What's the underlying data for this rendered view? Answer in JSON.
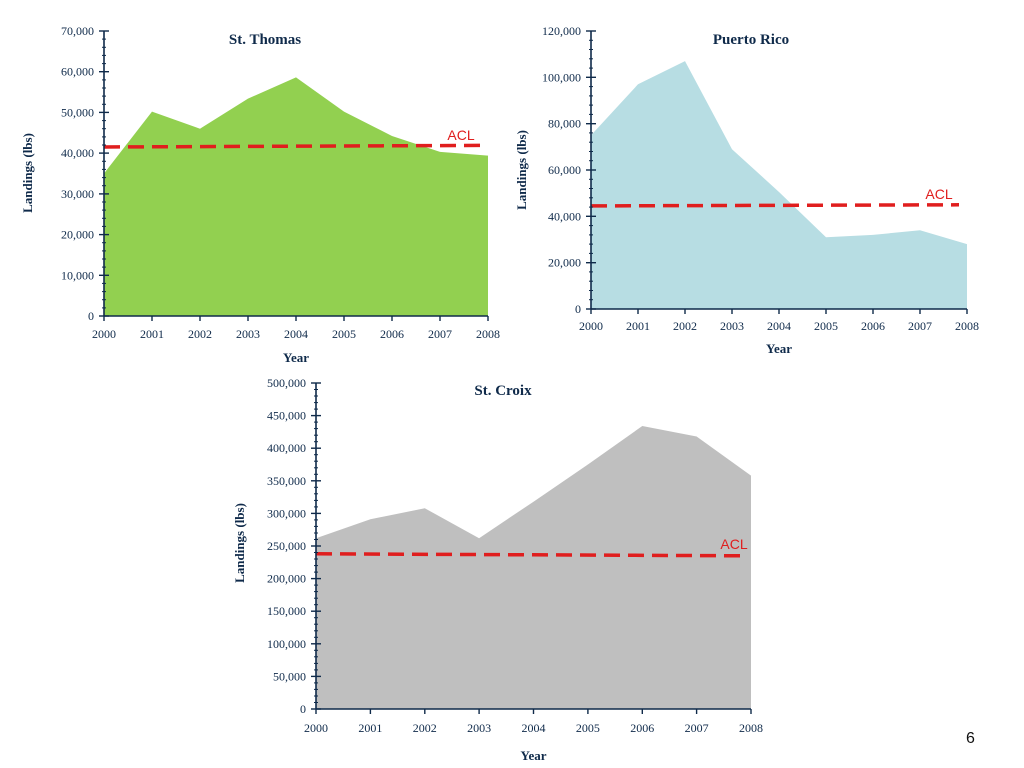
{
  "page_number": "6",
  "chart_data": [
    {
      "type": "area",
      "title": "St. Thomas",
      "xlabel": "Year",
      "ylabel": "Landings (lbs)",
      "x": [
        2000,
        2001,
        2002,
        2003,
        2004,
        2005,
        2006,
        2007,
        2008
      ],
      "x_tick_labels": [
        "2000",
        "2001",
        "2002",
        "2003",
        "2004",
        "2005",
        "2006",
        "2007",
        "2008"
      ],
      "y_ticks": [
        0,
        10000,
        20000,
        30000,
        40000,
        50000,
        60000,
        70000
      ],
      "y_tick_labels": [
        "0",
        "10,000",
        "20,000",
        "30,000",
        "40,000",
        "50,000",
        "60,000",
        "70,000"
      ],
      "ylim": [
        0,
        70000
      ],
      "series": [
        {
          "values": [
            35000,
            50200,
            46000,
            53400,
            58600,
            50200,
            44200,
            40300,
            39400
          ]
        }
      ],
      "reference_line": {
        "label": "ACL",
        "from": 41500,
        "to": 41900
      },
      "grid": false,
      "colors": {
        "fill": "#92d050",
        "acl": "#e01e1e",
        "axis": "#0f2a4a"
      }
    },
    {
      "type": "area",
      "title": "Puerto Rico",
      "xlabel": "Year",
      "ylabel": "Landings (lbs)",
      "x": [
        2000,
        2001,
        2002,
        2003,
        2004,
        2005,
        2006,
        2007,
        2008
      ],
      "x_tick_labels": [
        "2000",
        "2001",
        "2002",
        "2003",
        "2004",
        "2005",
        "2006",
        "2007",
        "2008"
      ],
      "y_ticks": [
        0,
        20000,
        40000,
        60000,
        80000,
        100000,
        120000
      ],
      "y_tick_labels": [
        "0",
        "20,000",
        "40,000",
        "60,000",
        "80,000",
        "100,000",
        "120,000"
      ],
      "ylim": [
        0,
        120000
      ],
      "series": [
        {
          "values": [
            75000,
            97000,
            107000,
            69000,
            50500,
            31000,
            32000,
            34000,
            28000
          ]
        }
      ],
      "reference_line": {
        "label": "ACL",
        "from": 44500,
        "to": 45000
      },
      "grid": false,
      "colors": {
        "fill": "#b7dde3",
        "acl": "#e01e1e",
        "axis": "#0f2a4a"
      }
    },
    {
      "type": "area",
      "title": "St. Croix",
      "xlabel": "Year",
      "ylabel": "Landings (lbs)",
      "x": [
        2000,
        2001,
        2002,
        2003,
        2004,
        2005,
        2006,
        2007,
        2008
      ],
      "x_tick_labels": [
        "2000",
        "2001",
        "2002",
        "2003",
        "2004",
        "2005",
        "2006",
        "2007",
        "2008"
      ],
      "y_ticks": [
        0,
        50000,
        100000,
        150000,
        200000,
        250000,
        300000,
        350000,
        400000,
        450000,
        500000
      ],
      "y_tick_labels": [
        "0",
        "50,000",
        "100,000",
        "150,000",
        "200,000",
        "250,000",
        "300,000",
        "350,000",
        "400,000",
        "450,000",
        "500,000"
      ],
      "ylim": [
        0,
        500000
      ],
      "series": [
        {
          "values": [
            262000,
            291000,
            308000,
            262000,
            318000,
            375000,
            434000,
            418000,
            358000
          ]
        }
      ],
      "reference_line": {
        "label": "ACL",
        "from": 238000,
        "to": 235000
      },
      "grid": false,
      "colors": {
        "fill": "#bfbfbf",
        "acl": "#e01e1e",
        "axis": "#0f2a4a"
      }
    }
  ]
}
